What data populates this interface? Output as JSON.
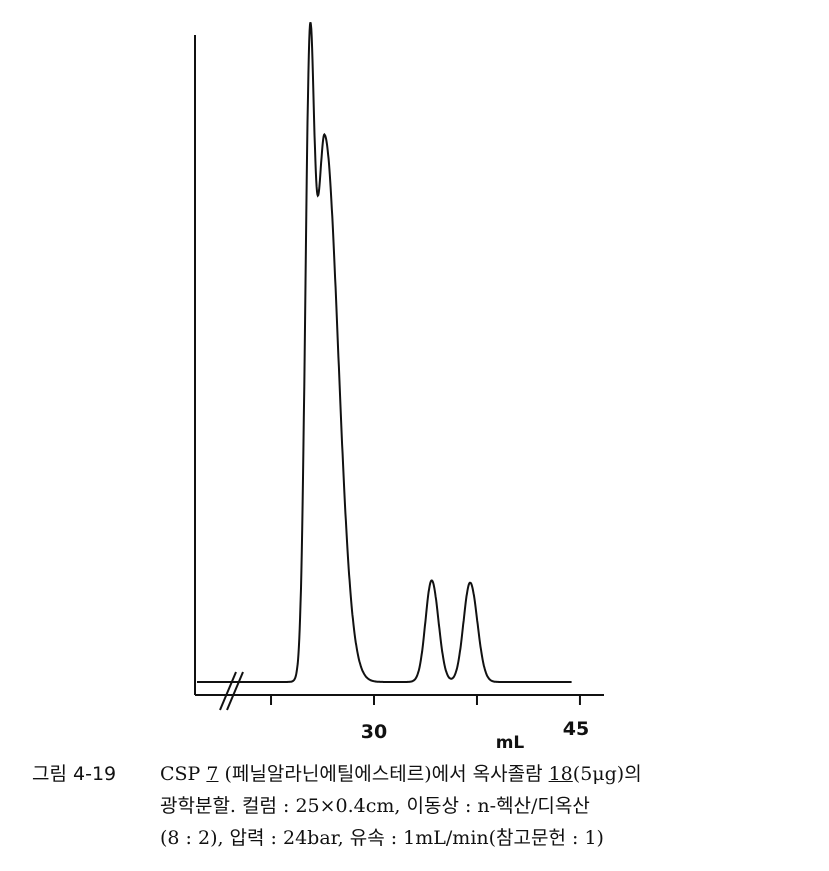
{
  "chart_data": {
    "type": "line",
    "title": "",
    "xlabel": "mL",
    "ylabel": "",
    "xlim": [
      15,
      46
    ],
    "axis_break": true,
    "x_ticks": [
      22.5,
      30,
      37.5,
      45
    ],
    "x_tick_labels": [
      {
        "value": 30,
        "label": "30"
      },
      {
        "value": 45,
        "label": "45"
      }
    ],
    "baseline": 0,
    "trace_end": 44.4,
    "peaks": [
      {
        "retention_mL": 25.3,
        "relative_height": 98
      },
      {
        "retention_mL": 26.4,
        "relative_height": 100
      },
      {
        "retention_mL": 34.2,
        "relative_height": 18.6
      },
      {
        "retention_mL": 37.0,
        "relative_height": 18.2
      }
    ],
    "grid": false,
    "line_color": "#111111"
  },
  "caption": {
    "figure_number": "그림 4-19",
    "line1_a": "CSP ",
    "line1_csp": "7",
    "line1_b": " (페닐알라닌에틸에스테르)에서 옥사졸람 ",
    "line1_cmp": "18",
    "line1_c": "(5μg)의",
    "line2": "광학분할.  컬럼 : 25×0.4cm,   이동상 : n-헥산/디옥산",
    "line3": "(8 : 2),  압력 : 24bar, 유속 : 1mL/min(참고문헌 : 1)"
  }
}
